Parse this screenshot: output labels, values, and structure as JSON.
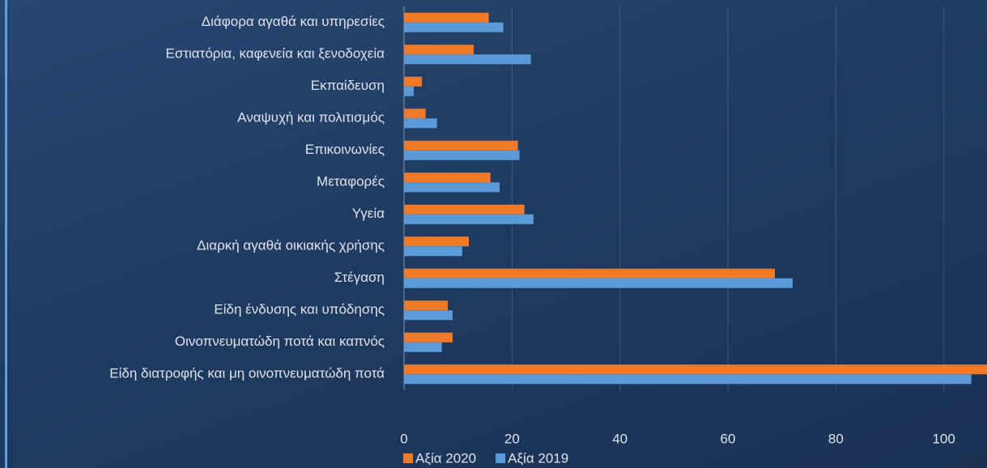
{
  "chart_data": {
    "type": "hbar",
    "categories": [
      "Διάφορα αγαθά και υπηρεσίες",
      "Εστιατόρια, καφενεία  και ξενοδοχεία",
      "Εκπαίδευση",
      "Αναψυχή και πολιτισμός",
      "Επικοινωνίες",
      "Μεταφορές",
      "Υγεία",
      "Διαρκή αγαθά οικιακής χρήσης",
      "Στέγαση",
      "Είδη ένδυσης και υπόδησης",
      "Οινοπνευματώδη ποτά και καπνός",
      "Είδη διατροφής και μη οινοπνευματώδη ποτά"
    ],
    "series": [
      {
        "name": "Αξία 2020",
        "color": "#f07a2a",
        "values": [
          15.7,
          12.9,
          3.3,
          4.0,
          21.1,
          16.0,
          22.3,
          12.0,
          68.7,
          8.1,
          9.0,
          108
        ]
      },
      {
        "name": "Αξία 2019",
        "color": "#5a9ad8",
        "values": [
          18.4,
          23.5,
          1.8,
          6.1,
          21.4,
          17.7,
          24.0,
          10.8,
          72.0,
          9.0,
          7.0,
          105.1
        ]
      }
    ],
    "xlim": [
      0,
      108
    ],
    "xticks": [
      0,
      20,
      40,
      60,
      80,
      100
    ],
    "grid": true,
    "legend": "bottom"
  }
}
